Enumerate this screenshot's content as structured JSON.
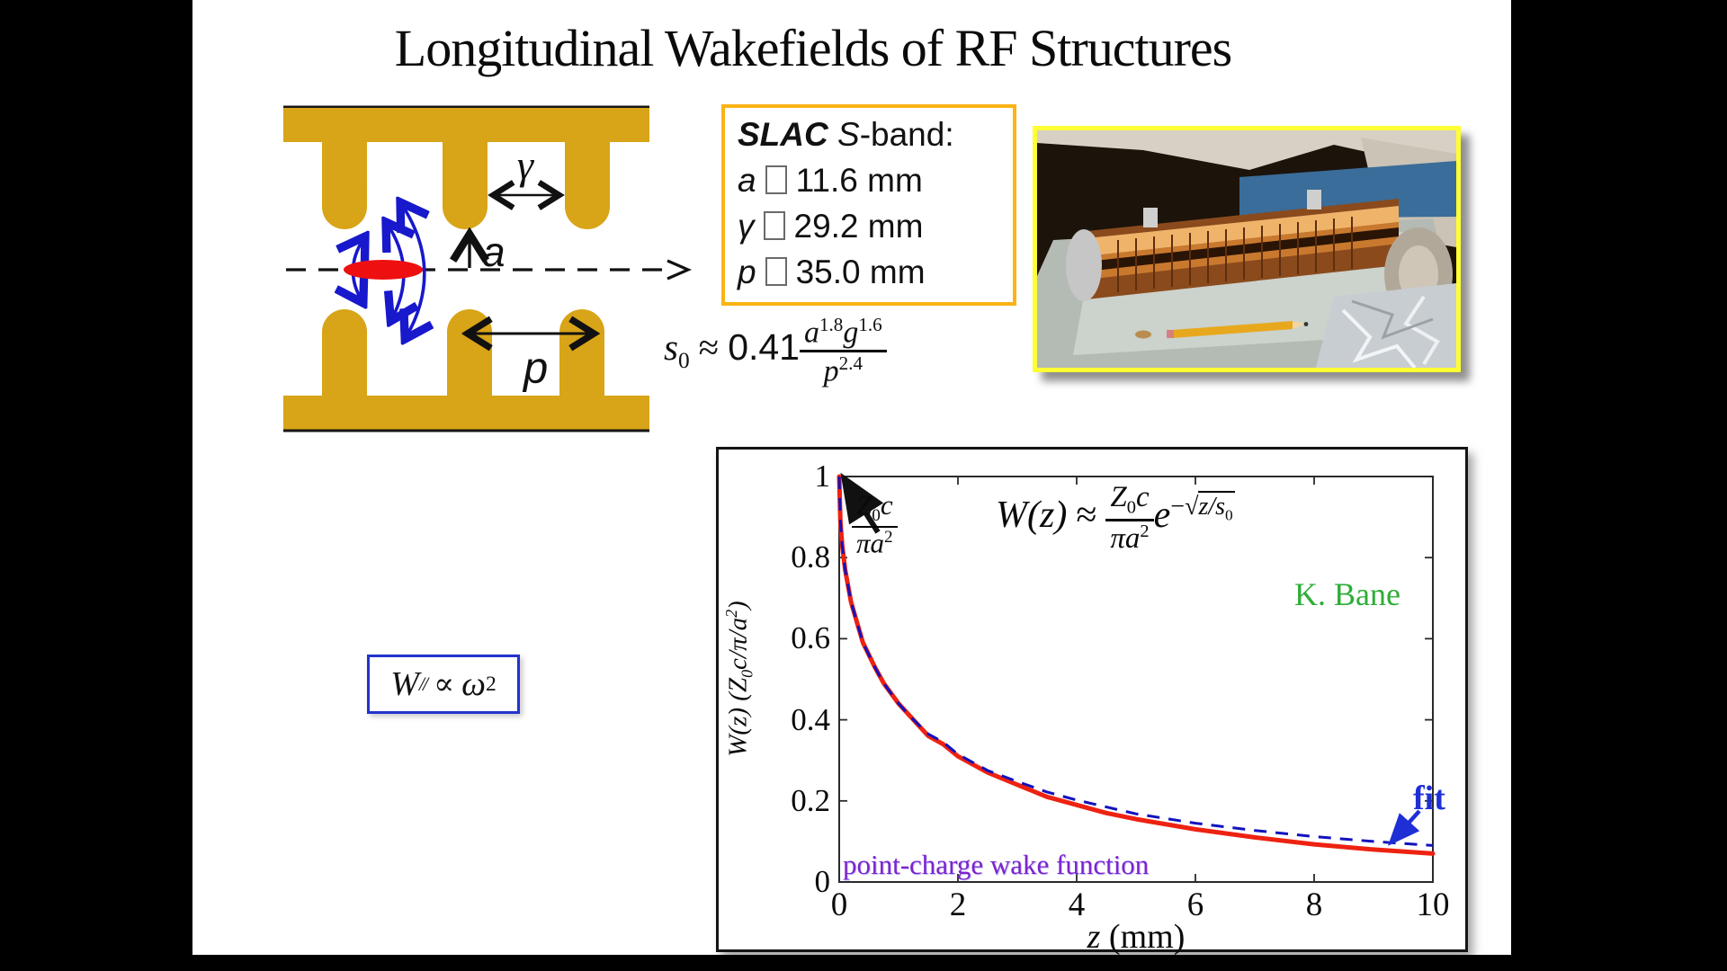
{
  "slide": {
    "title": "Longitudinal Wakefields of RF Structures"
  },
  "colors": {
    "structure_gold": "#D8A418",
    "params_border": "#FBB315",
    "blue_accent": "#2233CC",
    "curve_red": "#EE2211",
    "fit_blue": "#1212BE",
    "credit_green": "#2EAD37",
    "wake_label_purple": "#7D22CC",
    "photo_border": "#FFFF33"
  },
  "diagram": {
    "gap_label": "γ",
    "iris_label": "a",
    "period_label": "p"
  },
  "params_box": {
    "brand": "SLAC",
    "band_italic": "S",
    "band_rest": "-band:",
    "missing_glyph": "□",
    "rows": [
      {
        "sym": "a",
        "value": "11.6 mm"
      },
      {
        "sym": "γ",
        "value": "29.2 mm"
      },
      {
        "sym": "p",
        "value": "35.0 mm"
      }
    ]
  },
  "s0_formula": {
    "lhs": "s",
    "lhs_sub": "0",
    "rel": "≈",
    "coef": "0.41",
    "num1_base": "a",
    "num1_exp": "1.8",
    "num2_base": "g",
    "num2_exp": "1.6",
    "den_base": "p",
    "den_exp": "2.4"
  },
  "wpar_box": {
    "base": "W",
    "sub": "//",
    "rel": "∝",
    "omega": "ω",
    "exp": "2"
  },
  "chart": {
    "formula": {
      "lhs": "W(z)",
      "rel": "≈",
      "num_z": "Z",
      "num_sub": "0",
      "num_c": "c",
      "den": "πa",
      "den_sup": "2",
      "e": "e",
      "minus": "−",
      "radical": "√",
      "arg": "z/s",
      "arg_sub": "0"
    },
    "peak": {
      "num_z": "Z",
      "num_sub": "0",
      "num_c": "c",
      "den": "πa",
      "den_sup": "2"
    },
    "credit": "K. Bane",
    "fit_label": "fit",
    "curve_label": "point-charge wake function",
    "xlabel_var": "z",
    "xlabel_rest": " (mm)",
    "ylabel_var": "W(z)",
    "ylabel_rest": " (Z",
    "ylabel_sub": "0",
    "ylabel_mid": "c/π/a",
    "ylabel_sup": "2",
    "ylabel_close": ")"
  },
  "chart_data": {
    "type": "line",
    "title": "",
    "xlabel": "z (mm)",
    "ylabel": "W(z) (Z0c/π/a²)",
    "xlim": [
      0,
      10
    ],
    "ylim": [
      0,
      1
    ],
    "xticks": [
      "0",
      "2",
      "4",
      "6",
      "8",
      "10"
    ],
    "yticks": [
      "0",
      "0.2",
      "0.4",
      "0.6",
      "0.8",
      "1"
    ],
    "grid": false,
    "legend_position": "none",
    "equation": "W(z) ≈ (Z0c/πa²)·e^(−√(z/s0))",
    "annotation_peak": "Z0c/πa²",
    "credit": "K. Bane",
    "series": [
      {
        "name": "point-charge wake function",
        "color": "#EE2211",
        "style": "solid",
        "x": [
          0,
          0.02,
          0.05,
          0.1,
          0.15,
          0.2,
          0.3,
          0.4,
          0.5,
          0.6,
          0.75,
          1,
          1.25,
          1.5,
          1.75,
          2,
          2.5,
          3,
          3.5,
          4,
          4.5,
          5,
          6,
          7,
          8,
          9,
          10
        ],
        "y": [
          1,
          0.89,
          0.83,
          0.77,
          0.73,
          0.69,
          0.64,
          0.59,
          0.56,
          0.53,
          0.49,
          0.44,
          0.4,
          0.36,
          0.34,
          0.31,
          0.27,
          0.24,
          0.21,
          0.19,
          0.17,
          0.155,
          0.13,
          0.11,
          0.093,
          0.08,
          0.07
        ]
      },
      {
        "name": "fit",
        "color": "#1212BE",
        "style": "dashed",
        "x": [
          0,
          0.02,
          0.05,
          0.1,
          0.15,
          0.2,
          0.3,
          0.4,
          0.5,
          0.6,
          0.75,
          1,
          1.25,
          1.5,
          1.75,
          2,
          2.5,
          3,
          3.5,
          4,
          4.5,
          5,
          6,
          7,
          8,
          9,
          10
        ],
        "y": [
          1,
          0.89,
          0.83,
          0.77,
          0.73,
          0.69,
          0.64,
          0.59,
          0.56,
          0.53,
          0.49,
          0.44,
          0.4,
          0.365,
          0.345,
          0.315,
          0.275,
          0.248,
          0.222,
          0.202,
          0.185,
          0.168,
          0.145,
          0.127,
          0.112,
          0.1,
          0.09
        ]
      }
    ]
  }
}
